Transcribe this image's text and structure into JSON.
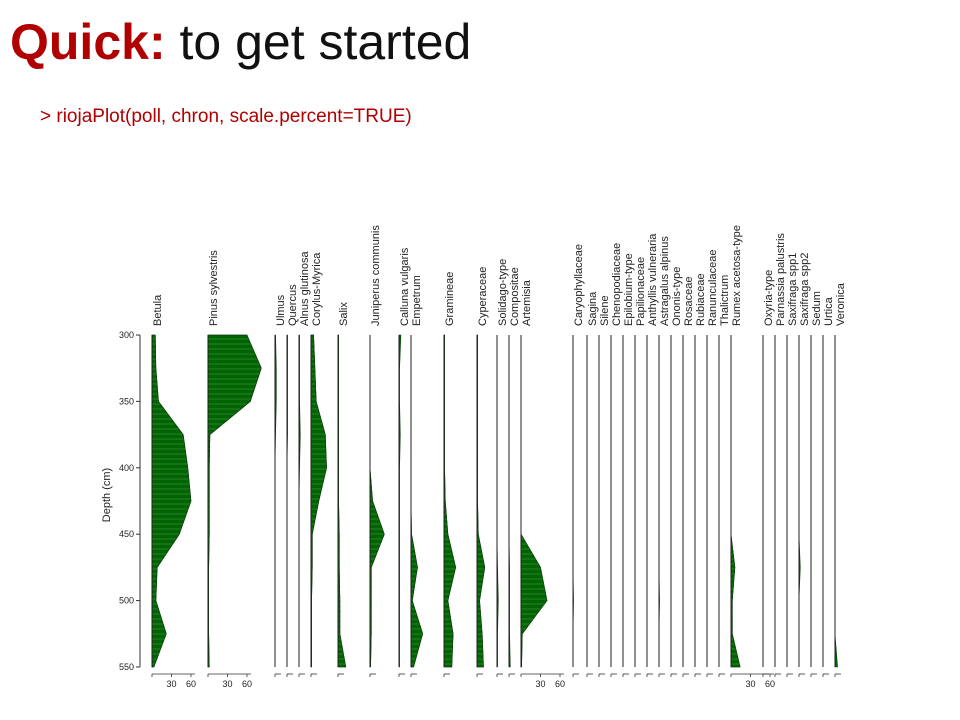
{
  "slide": {
    "title_bold": "Quick:",
    "title_rest": " to get started",
    "code_line": "> riojaPlot(poll, chron, scale.percent=TRUE)"
  },
  "colors": {
    "title_accent": "#b00000",
    "fill": "#006400",
    "text": "#111111"
  },
  "chart_data": {
    "type": "area",
    "title": "",
    "ylabel": "Depth (cm)",
    "ylim": [
      300,
      550
    ],
    "y_ticks": [
      300,
      350,
      400,
      450,
      500,
      550
    ],
    "depths": [
      300,
      325,
      350,
      375,
      400,
      425,
      450,
      475,
      500,
      525,
      550
    ],
    "x_ticks_percent": [
      30,
      60
    ],
    "series": [
      {
        "name": "Betula",
        "values": [
          5,
          6,
          10,
          48,
          55,
          60,
          42,
          8,
          6,
          22,
          3
        ]
      },
      {
        "name": "Pinus sylvestris",
        "values": [
          60,
          82,
          65,
          3,
          2,
          2,
          2,
          1,
          1,
          1,
          2
        ]
      },
      {
        "name": "Ulmus",
        "values": [
          1,
          2,
          2,
          1,
          0,
          0,
          0,
          0,
          0,
          0,
          0
        ]
      },
      {
        "name": "Quercus",
        "values": [
          1,
          1,
          1,
          1,
          0,
          0,
          0,
          0,
          0,
          0,
          0
        ]
      },
      {
        "name": "Alnus glutinosa",
        "values": [
          1,
          1,
          1,
          2,
          1,
          0,
          0,
          0,
          0,
          0,
          0
        ]
      },
      {
        "name": "Corylus-Myrica",
        "values": [
          4,
          6,
          8,
          22,
          24,
          12,
          2,
          2,
          1,
          1,
          1
        ]
      },
      {
        "name": "Salix",
        "values": [
          1,
          1,
          1,
          1,
          1,
          1,
          2,
          2,
          3,
          3,
          12
        ]
      },
      {
        "name": "Juniperus communis",
        "values": [
          0,
          0,
          0,
          0,
          0,
          4,
          22,
          2,
          2,
          2,
          1
        ]
      },
      {
        "name": "Calluna vulgaris",
        "values": [
          3,
          1,
          1,
          2,
          1,
          1,
          1,
          1,
          1,
          1,
          1
        ]
      },
      {
        "name": "Empetrum",
        "values": [
          0,
          0,
          0,
          0,
          0,
          0,
          1,
          10,
          2,
          18,
          4
        ]
      },
      {
        "name": "Gramineae",
        "values": [
          1,
          1,
          1,
          1,
          1,
          2,
          6,
          18,
          6,
          14,
          12
        ]
      },
      {
        "name": "Cyperaceae",
        "values": [
          1,
          1,
          1,
          1,
          1,
          1,
          2,
          12,
          4,
          8,
          10
        ]
      },
      {
        "name": "Solidago-type",
        "values": [
          0,
          0,
          0,
          0,
          0,
          0,
          0,
          1,
          2,
          1,
          1
        ]
      },
      {
        "name": "Compositae",
        "values": [
          0,
          0,
          0,
          0,
          0,
          0,
          0,
          1,
          1,
          1,
          2
        ]
      },
      {
        "name": "Artemisia",
        "values": [
          0,
          0,
          0,
          0,
          0,
          0,
          0,
          30,
          40,
          2,
          1
        ]
      },
      {
        "name": "Caryophyllaceae",
        "values": [
          0,
          0,
          0,
          0,
          0,
          0,
          0,
          0,
          1,
          0,
          0
        ]
      },
      {
        "name": "Sagina",
        "values": [
          0,
          0,
          0,
          0,
          0,
          0,
          0,
          0,
          0,
          0,
          0
        ]
      },
      {
        "name": "Silene",
        "values": [
          0,
          0,
          0,
          0,
          0,
          0,
          0,
          0,
          0,
          0,
          0
        ]
      },
      {
        "name": "Chenopodiaceae",
        "values": [
          0,
          0,
          0,
          0,
          0,
          0,
          0,
          0,
          0,
          0,
          0
        ]
      },
      {
        "name": "Epilobium-type",
        "values": [
          0,
          0,
          0,
          0,
          0,
          0,
          0,
          0,
          0,
          0,
          0
        ]
      },
      {
        "name": "Papilionaceae",
        "values": [
          0,
          0,
          0,
          0,
          0,
          0,
          0,
          0,
          0,
          0,
          0
        ]
      },
      {
        "name": "Anthyllis vulneraria",
        "values": [
          0,
          0,
          0,
          0,
          0,
          0,
          0,
          0,
          0,
          0,
          0
        ]
      },
      {
        "name": "Astragalus alpinus",
        "values": [
          0,
          0,
          0,
          0,
          0,
          0,
          0,
          0,
          1,
          0,
          0
        ]
      },
      {
        "name": "Ononis-type",
        "values": [
          0,
          0,
          0,
          0,
          0,
          0,
          0,
          0,
          0,
          0,
          0
        ]
      },
      {
        "name": "Rosaceae",
        "values": [
          0,
          0,
          0,
          0,
          0,
          0,
          0,
          0,
          0,
          0,
          0
        ]
      },
      {
        "name": "Rubiaceae",
        "values": [
          0,
          0,
          0,
          0,
          0,
          0,
          0,
          0,
          0,
          0,
          0
        ]
      },
      {
        "name": "Ranunculaceae",
        "values": [
          0,
          0,
          0,
          0,
          0,
          0,
          0,
          0,
          0,
          0,
          0
        ]
      },
      {
        "name": "Thalictrum",
        "values": [
          0,
          0,
          0,
          0,
          0,
          0,
          0,
          0,
          0,
          0,
          0
        ]
      },
      {
        "name": "Rumex acetosa-type",
        "values": [
          0,
          0,
          0,
          0,
          0,
          0,
          0,
          6,
          2,
          2,
          14
        ]
      },
      {
        "name": "Oxyria-type",
        "values": [
          0,
          0,
          0,
          0,
          0,
          0,
          0,
          0,
          0,
          0,
          0
        ]
      },
      {
        "name": "Parnassia palustris",
        "values": [
          0,
          0,
          0,
          0,
          0,
          0,
          0,
          0,
          0,
          0,
          0
        ]
      },
      {
        "name": "Saxifraga spp1",
        "values": [
          0,
          0,
          0,
          0,
          0,
          0,
          0,
          0,
          0,
          0,
          0
        ]
      },
      {
        "name": "Saxifraga spp2",
        "values": [
          0,
          0,
          0,
          0,
          0,
          0,
          0,
          2,
          0,
          0,
          0
        ]
      },
      {
        "name": "Sedum",
        "values": [
          0,
          0,
          0,
          0,
          0,
          0,
          0,
          0,
          0,
          0,
          0
        ]
      },
      {
        "name": "Urtica",
        "values": [
          0,
          0,
          0,
          0,
          0,
          0,
          0,
          0,
          0,
          0,
          0
        ]
      },
      {
        "name": "Veronica",
        "values": [
          0,
          0,
          0,
          0,
          0,
          0,
          0,
          0,
          0,
          0,
          4
        ]
      }
    ]
  }
}
